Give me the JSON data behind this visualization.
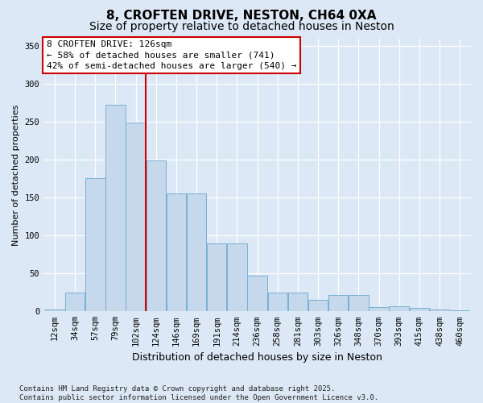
{
  "title": "8, CROFTEN DRIVE, NESTON, CH64 0XA",
  "subtitle": "Size of property relative to detached houses in Neston",
  "xlabel": "Distribution of detached houses by size in Neston",
  "ylabel": "Number of detached properties",
  "categories": [
    "12sqm",
    "34sqm",
    "57sqm",
    "79sqm",
    "102sqm",
    "124sqm",
    "146sqm",
    "169sqm",
    "191sqm",
    "214sqm",
    "236sqm",
    "258sqm",
    "281sqm",
    "303sqm",
    "326sqm",
    "348sqm",
    "370sqm",
    "393sqm",
    "415sqm",
    "438sqm",
    "460sqm"
  ],
  "bar_heights": [
    2,
    25,
    176,
    272,
    249,
    199,
    155,
    155,
    90,
    90,
    47,
    25,
    25,
    15,
    22,
    22,
    6,
    7,
    5,
    2,
    1
  ],
  "bar_color": "#c5d8ec",
  "bar_edge_color": "#7aafd4",
  "vline_color": "#cc0000",
  "vline_x": 4.5,
  "annotation_text": "8 CROFTEN DRIVE: 126sqm\n← 58% of detached houses are smaller (741)\n42% of semi-detached houses are larger (540) →",
  "annotation_box_facecolor": "#ffffff",
  "annotation_box_edgecolor": "#cc0000",
  "background_color": "#dce8f5",
  "grid_color": "#ffffff",
  "footer_line1": "Contains HM Land Registry data © Crown copyright and database right 2025.",
  "footer_line2": "Contains public sector information licensed under the Open Government Licence v3.0.",
  "ylim_max": 360,
  "yticks": [
    0,
    50,
    100,
    150,
    200,
    250,
    300,
    350
  ],
  "title_fontsize": 11,
  "subtitle_fontsize": 10,
  "xlabel_fontsize": 9,
  "ylabel_fontsize": 8,
  "tick_fontsize": 7.5,
  "annot_fontsize": 8,
  "footer_fontsize": 6.5
}
